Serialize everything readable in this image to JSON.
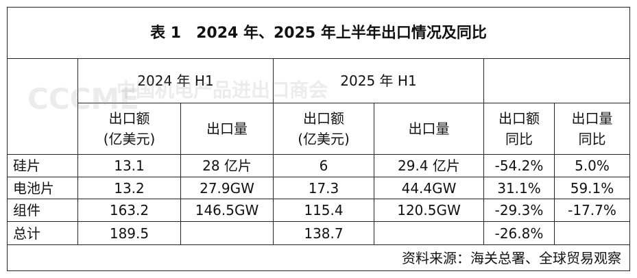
{
  "title": "表 1　2024 年、2025 年上半年出口情况及同比",
  "header": {
    "groups": [
      "2024 年 H1",
      "2025 年 H1"
    ],
    "columns": [
      "出口额\n(亿美元)",
      "出口量",
      "出口额\n(亿美元)",
      "出口量",
      "出口额\n同比",
      "出口量\n同比"
    ]
  },
  "table": {
    "rows": [
      [
        "硅片",
        "13.1",
        "28 亿片",
        "6",
        "29.4 亿片",
        "-54.2%",
        "5.0%"
      ],
      [
        "电池片",
        "13.2",
        "27.9GW",
        "17.3",
        "44.4GW",
        "31.1%",
        "59.1%"
      ],
      [
        "组件",
        "163.2",
        "146.5GW",
        "115.4",
        "120.5GW",
        "-29.3%",
        "-17.7%"
      ],
      [
        "总计",
        "189.5",
        null,
        "138.7",
        null,
        "-26.8%",
        null
      ]
    ]
  },
  "footer": "资料来源：海关总署、全球贸易观察",
  "watermark": {
    "logo": "CCCME",
    "text": "中国机电产品进出口商会"
  }
}
